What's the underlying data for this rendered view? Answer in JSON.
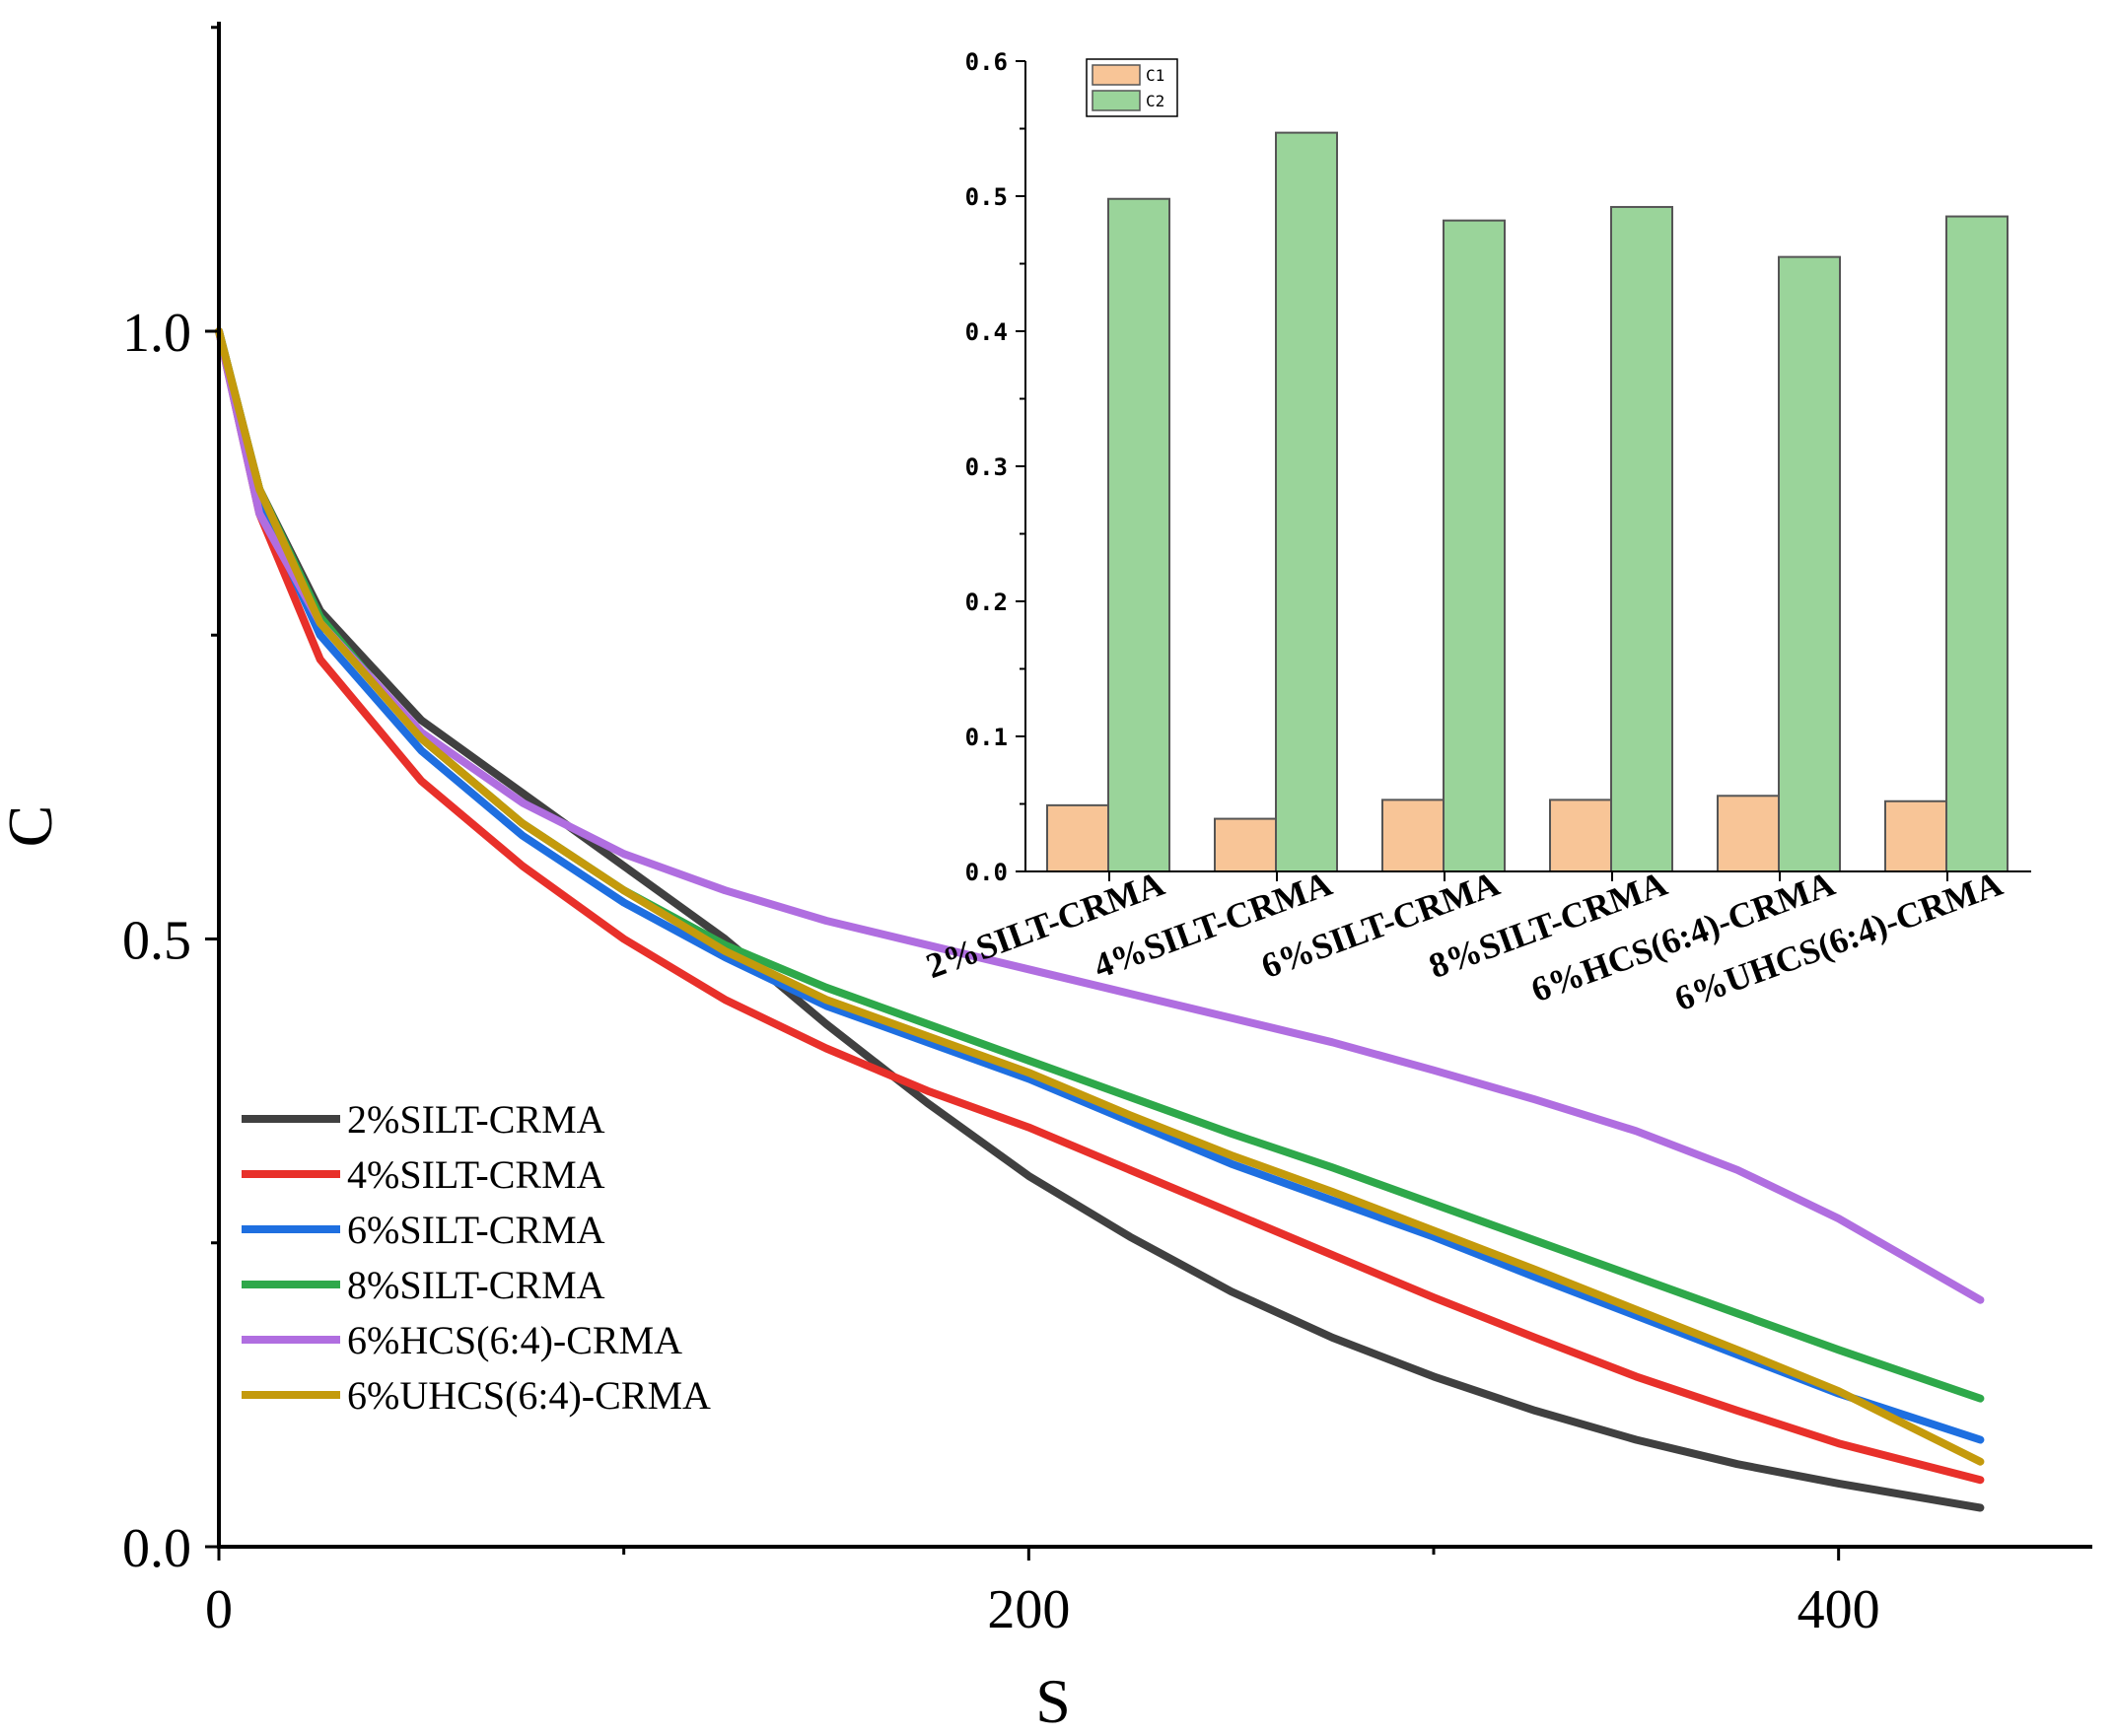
{
  "chart_data": [
    {
      "type": "line",
      "xlabel": "S",
      "ylabel": "C",
      "xlim": [
        0,
        450
      ],
      "ylim": [
        0,
        1.0
      ],
      "x_ticks": [
        0,
        200,
        400
      ],
      "x_tick_labels": [
        "0",
        "200",
        "400"
      ],
      "y_ticks": [
        0,
        0.5,
        1.0
      ],
      "y_tick_labels": [
        "0.0",
        "0.5",
        "1.0"
      ],
      "grid": false,
      "legend_position": "lower-left",
      "series": [
        {
          "name": "2%SILT-CRMA",
          "color": "#404040",
          "x": [
            0,
            10,
            25,
            50,
            75,
            100,
            125,
            150,
            175,
            200,
            225,
            250,
            275,
            300,
            325,
            350,
            375,
            400,
            435
          ],
          "y": [
            1.0,
            0.87,
            0.77,
            0.68,
            0.62,
            0.56,
            0.5,
            0.43,
            0.365,
            0.305,
            0.255,
            0.21,
            0.172,
            0.14,
            0.112,
            0.088,
            0.068,
            0.052,
            0.032
          ]
        },
        {
          "name": "4%SILT-CRMA",
          "color": "#e8302a",
          "x": [
            0,
            10,
            25,
            50,
            75,
            100,
            125,
            150,
            175,
            200,
            225,
            250,
            275,
            300,
            325,
            350,
            375,
            400,
            435
          ],
          "y": [
            1.0,
            0.85,
            0.73,
            0.63,
            0.56,
            0.5,
            0.45,
            0.41,
            0.375,
            0.345,
            0.31,
            0.275,
            0.24,
            0.205,
            0.172,
            0.14,
            0.112,
            0.085,
            0.055
          ]
        },
        {
          "name": "6%SILT-CRMA",
          "color": "#1e6fe0",
          "x": [
            0,
            10,
            25,
            50,
            75,
            100,
            125,
            150,
            175,
            200,
            225,
            250,
            275,
            300,
            325,
            350,
            375,
            400,
            435
          ],
          "y": [
            1.0,
            0.86,
            0.75,
            0.655,
            0.585,
            0.53,
            0.485,
            0.445,
            0.415,
            0.385,
            0.35,
            0.315,
            0.285,
            0.255,
            0.222,
            0.19,
            0.158,
            0.126,
            0.088
          ]
        },
        {
          "name": "8%SILT-CRMA",
          "color": "#2ea84a",
          "x": [
            0,
            10,
            25,
            50,
            75,
            100,
            125,
            150,
            175,
            200,
            225,
            250,
            275,
            300,
            325,
            350,
            375,
            400,
            435
          ],
          "y": [
            1.0,
            0.87,
            0.765,
            0.665,
            0.595,
            0.54,
            0.495,
            0.46,
            0.43,
            0.4,
            0.37,
            0.34,
            0.312,
            0.282,
            0.252,
            0.222,
            0.192,
            0.162,
            0.122
          ]
        },
        {
          "name": "6%HCS(6:4)-CRMA",
          "color": "#b06ee0",
          "x": [
            0,
            10,
            25,
            50,
            75,
            100,
            125,
            150,
            175,
            200,
            225,
            250,
            275,
            300,
            325,
            350,
            375,
            400,
            435
          ],
          "y": [
            1.0,
            0.85,
            0.76,
            0.67,
            0.612,
            0.57,
            0.54,
            0.515,
            0.495,
            0.475,
            0.455,
            0.435,
            0.415,
            0.392,
            0.368,
            0.342,
            0.31,
            0.27,
            0.203
          ]
        },
        {
          "name": "6%UHCS(6:4)-CRMA",
          "color": "#c49a0c",
          "x": [
            0,
            10,
            25,
            50,
            75,
            100,
            125,
            150,
            175,
            200,
            225,
            250,
            275,
            300,
            325,
            350,
            375,
            400,
            435
          ],
          "y": [
            1.0,
            0.87,
            0.76,
            0.665,
            0.595,
            0.54,
            0.49,
            0.45,
            0.42,
            0.39,
            0.355,
            0.322,
            0.292,
            0.26,
            0.228,
            0.195,
            0.162,
            0.128,
            0.07
          ]
        }
      ]
    },
    {
      "type": "bar",
      "categories": [
        "2%SILT-CRMA",
        "4%SILT-CRMA",
        "6%SILT-CRMA",
        "8%SILT-CRMA",
        "6%HCS(6:4)-CRMA",
        "6%UHCS(6:4)-CRMA"
      ],
      "ylim": [
        0,
        0.6
      ],
      "y_ticks": [
        0,
        0.1,
        0.2,
        0.3,
        0.4,
        0.5,
        0.6
      ],
      "y_tick_labels": [
        "0.0",
        "0.1",
        "0.2",
        "0.3",
        "0.4",
        "0.5",
        "0.6"
      ],
      "legend_position": "top-left",
      "grid": false,
      "series": [
        {
          "name": "C1",
          "color": "#f8c597",
          "values": [
            0.049,
            0.039,
            0.053,
            0.053,
            0.056,
            0.052
          ]
        },
        {
          "name": "C2",
          "color": "#9ad49a",
          "values": [
            0.498,
            0.547,
            0.482,
            0.492,
            0.455,
            0.485
          ]
        }
      ]
    }
  ]
}
